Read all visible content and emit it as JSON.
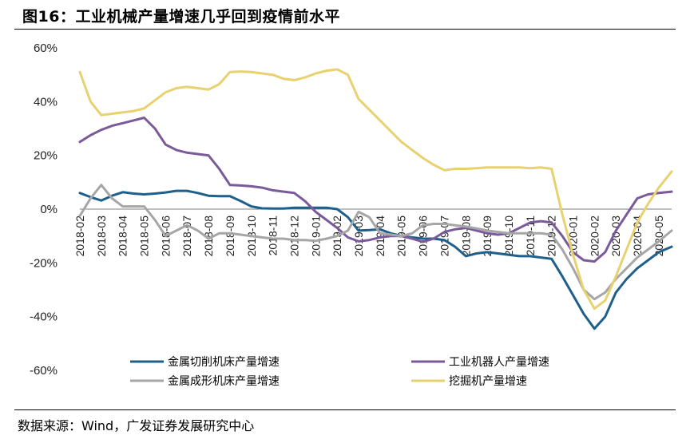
{
  "figure": {
    "title": "图16：工业机械产量增速几乎回到疫情前水平",
    "source": "数据来源：Wind，广发证券发展研究中心"
  },
  "chart_data": {
    "type": "line",
    "title": "工业机械产量增速几乎回到疫情前水平",
    "xlabel": "",
    "ylabel": "",
    "ylim": [
      -60,
      60
    ],
    "yticks": [
      60,
      40,
      20,
      0,
      -20,
      -40,
      -60
    ],
    "ytick_labels": [
      "60%",
      "40%",
      "20%",
      "0%",
      "-20%",
      "-40%",
      "-60%"
    ],
    "categories": [
      "2018-02",
      "2018-03",
      "2018-04",
      "2018-05",
      "2018-06",
      "2018-07",
      "2018-08",
      "2018-09",
      "2018-10",
      "2018-11",
      "2018-12",
      "2019-01",
      "2019-02",
      "2019-03",
      "2019-04",
      "2019-05",
      "2019-06",
      "2019-07",
      "2019-08",
      "2019-09",
      "2019-10",
      "2019-11",
      "2019-12",
      "2020-01",
      "2020-02",
      "2020-03",
      "2020-04",
      "2020-05"
    ],
    "x_range": [
      0,
      27.6
    ],
    "legend_position": "bottom",
    "series": [
      {
        "name": "金属切削机床产量增速",
        "color": "#1f5f8b",
        "points": [
          [
            0,
            6
          ],
          [
            0.5,
            4.5
          ],
          [
            1,
            3.2
          ],
          [
            1.5,
            5
          ],
          [
            2,
            6.3
          ],
          [
            2.5,
            5.8
          ],
          [
            3,
            5.5
          ],
          [
            3.5,
            5.8
          ],
          [
            4,
            6.2
          ],
          [
            4.5,
            6.8
          ],
          [
            5,
            6.8
          ],
          [
            5.5,
            6
          ],
          [
            6,
            5
          ],
          [
            6.5,
            4.8
          ],
          [
            7,
            4.8
          ],
          [
            7.5,
            3
          ],
          [
            8,
            1
          ],
          [
            8.5,
            0.3
          ],
          [
            9,
            0.2
          ],
          [
            9.5,
            0.2
          ],
          [
            10,
            0.5
          ],
          [
            10.5,
            0.5
          ],
          [
            11,
            0.5
          ],
          [
            11.5,
            0.5
          ],
          [
            12,
            0
          ],
          [
            12.5,
            -3
          ],
          [
            13,
            -8
          ],
          [
            13.5,
            -7.8
          ],
          [
            14,
            -7.5
          ],
          [
            14.5,
            -9
          ],
          [
            15,
            -10
          ],
          [
            15.5,
            -10.5
          ],
          [
            16,
            -11
          ],
          [
            16.5,
            -11
          ],
          [
            17,
            -11.5
          ],
          [
            17.5,
            -14
          ],
          [
            18,
            -17.5
          ],
          [
            18.5,
            -16.5
          ],
          [
            19,
            -16
          ],
          [
            19.5,
            -16.5
          ],
          [
            20,
            -17
          ],
          [
            20.5,
            -17.5
          ],
          [
            21,
            -17.5
          ],
          [
            21.5,
            -18
          ],
          [
            22,
            -18.5
          ],
          [
            22.5,
            -25
          ],
          [
            23,
            -32
          ],
          [
            23.5,
            -39
          ],
          [
            24,
            -44.5
          ],
          [
            24.5,
            -40
          ],
          [
            25,
            -31
          ],
          [
            25.5,
            -26
          ],
          [
            26,
            -22
          ],
          [
            26.5,
            -19
          ],
          [
            27,
            -16
          ],
          [
            27.6,
            -14
          ]
        ]
      },
      {
        "name": "工业机器人产量增速",
        "color": "#7a5a9a",
        "points": [
          [
            0,
            25
          ],
          [
            0.5,
            27.5
          ],
          [
            1,
            29.5
          ],
          [
            1.5,
            31
          ],
          [
            2,
            32
          ],
          [
            2.5,
            33
          ],
          [
            3,
            34
          ],
          [
            3.5,
            30
          ],
          [
            4,
            24
          ],
          [
            4.5,
            22
          ],
          [
            5,
            21
          ],
          [
            5.5,
            20.5
          ],
          [
            6,
            20
          ],
          [
            6.5,
            15
          ],
          [
            7,
            9
          ],
          [
            7.5,
            8.8
          ],
          [
            8,
            8.5
          ],
          [
            8.5,
            8
          ],
          [
            9,
            7
          ],
          [
            9.5,
            6.5
          ],
          [
            10,
            6
          ],
          [
            10.5,
            3
          ],
          [
            11,
            -1
          ],
          [
            11.5,
            -4
          ],
          [
            12,
            -7
          ],
          [
            12.5,
            -10.5
          ],
          [
            13,
            -12
          ],
          [
            13.5,
            -11.5
          ],
          [
            14,
            -10.5
          ],
          [
            14.5,
            -10
          ],
          [
            15,
            -10
          ],
          [
            15.5,
            -11
          ],
          [
            16,
            -12.2
          ],
          [
            16.5,
            -11
          ],
          [
            17,
            -8.5
          ],
          [
            17.5,
            -7.5
          ],
          [
            18,
            -7
          ],
          [
            18.5,
            -8
          ],
          [
            19,
            -9
          ],
          [
            19.5,
            -9.5
          ],
          [
            20,
            -9
          ],
          [
            20.5,
            -7
          ],
          [
            21,
            -5
          ],
          [
            21.5,
            -4.5
          ],
          [
            22,
            -5
          ],
          [
            22.5,
            -10
          ],
          [
            23,
            -16
          ],
          [
            23.5,
            -19
          ],
          [
            24,
            -19.5
          ],
          [
            24.5,
            -16
          ],
          [
            25,
            -8
          ],
          [
            25.5,
            -2
          ],
          [
            26,
            4
          ],
          [
            26.5,
            5.5
          ],
          [
            27,
            6
          ],
          [
            27.6,
            6.5
          ]
        ]
      },
      {
        "name": "金属成形机床产量增速",
        "color": "#a6a6a6",
        "points": [
          [
            0,
            -2.5
          ],
          [
            0.5,
            4
          ],
          [
            1,
            9
          ],
          [
            1.5,
            4
          ],
          [
            2,
            1
          ],
          [
            2.5,
            1
          ],
          [
            3,
            1
          ],
          [
            3.5,
            -4
          ],
          [
            4,
            -10
          ],
          [
            4.5,
            -8
          ],
          [
            5,
            -6
          ],
          [
            5.5,
            -8
          ],
          [
            6,
            -11
          ],
          [
            6.5,
            -9
          ],
          [
            7,
            -9
          ],
          [
            7.5,
            -9.5
          ],
          [
            8,
            -10
          ],
          [
            8.5,
            -10.5
          ],
          [
            9,
            -11
          ],
          [
            9.5,
            -11
          ],
          [
            10,
            -11.5
          ],
          [
            10.5,
            -11.5
          ],
          [
            11,
            -11.8
          ],
          [
            11.5,
            -11
          ],
          [
            12,
            -10
          ],
          [
            12.5,
            -8
          ],
          [
            13,
            -1
          ],
          [
            13.5,
            -3
          ],
          [
            14,
            -9
          ],
          [
            14.5,
            -9.5
          ],
          [
            15,
            -10
          ],
          [
            15.5,
            -9
          ],
          [
            16,
            -6
          ],
          [
            16.5,
            -5.5
          ],
          [
            17,
            -5.5
          ],
          [
            17.5,
            -6
          ],
          [
            18,
            -6.5
          ],
          [
            18.5,
            -7.2
          ],
          [
            19,
            -8
          ],
          [
            19.5,
            -8.5
          ],
          [
            20,
            -9
          ],
          [
            20.5,
            -9
          ],
          [
            21,
            -9
          ],
          [
            21.5,
            -9
          ],
          [
            22,
            -9.5
          ],
          [
            22.5,
            -15
          ],
          [
            23,
            -22
          ],
          [
            23.5,
            -30
          ],
          [
            24,
            -33.5
          ],
          [
            24.5,
            -31
          ],
          [
            25,
            -26
          ],
          [
            25.5,
            -22
          ],
          [
            26,
            -18
          ],
          [
            26.5,
            -15
          ],
          [
            27,
            -12
          ],
          [
            27.6,
            -8
          ]
        ]
      },
      {
        "name": "挖掘机产量增速",
        "color": "#e8d16f",
        "points": [
          [
            0,
            51
          ],
          [
            0.5,
            40
          ],
          [
            1,
            35
          ],
          [
            1.5,
            35.5
          ],
          [
            2,
            36
          ],
          [
            2.5,
            36.5
          ],
          [
            3,
            37.5
          ],
          [
            3.5,
            40.5
          ],
          [
            4,
            43.5
          ],
          [
            4.5,
            45
          ],
          [
            5,
            45.5
          ],
          [
            5.5,
            45
          ],
          [
            6,
            44.5
          ],
          [
            6.5,
            46.5
          ],
          [
            7,
            51
          ],
          [
            7.5,
            51.2
          ],
          [
            8,
            51
          ],
          [
            8.5,
            50.5
          ],
          [
            9,
            50
          ],
          [
            9.5,
            48.5
          ],
          [
            10,
            48
          ],
          [
            10.5,
            49
          ],
          [
            11,
            50.5
          ],
          [
            11.5,
            51.5
          ],
          [
            12,
            52
          ],
          [
            12.5,
            50
          ],
          [
            13,
            41
          ],
          [
            13.5,
            37
          ],
          [
            14,
            33
          ],
          [
            14.5,
            29
          ],
          [
            15,
            25
          ],
          [
            15.5,
            22
          ],
          [
            16,
            19
          ],
          [
            16.5,
            16.5
          ],
          [
            17,
            14.5
          ],
          [
            17.5,
            15
          ],
          [
            18,
            15
          ],
          [
            18.5,
            15.2
          ],
          [
            19,
            15.5
          ],
          [
            19.5,
            15.5
          ],
          [
            20,
            15.5
          ],
          [
            20.5,
            15.5
          ],
          [
            21,
            15.2
          ],
          [
            21.5,
            15.5
          ],
          [
            22,
            15
          ],
          [
            22.5,
            -2
          ],
          [
            23,
            -17
          ],
          [
            23.5,
            -30
          ],
          [
            24,
            -37
          ],
          [
            24.5,
            -34
          ],
          [
            25,
            -25
          ],
          [
            25.5,
            -15
          ],
          [
            26,
            -5
          ],
          [
            26.5,
            2
          ],
          [
            27,
            8
          ],
          [
            27.6,
            14
          ]
        ]
      }
    ]
  }
}
